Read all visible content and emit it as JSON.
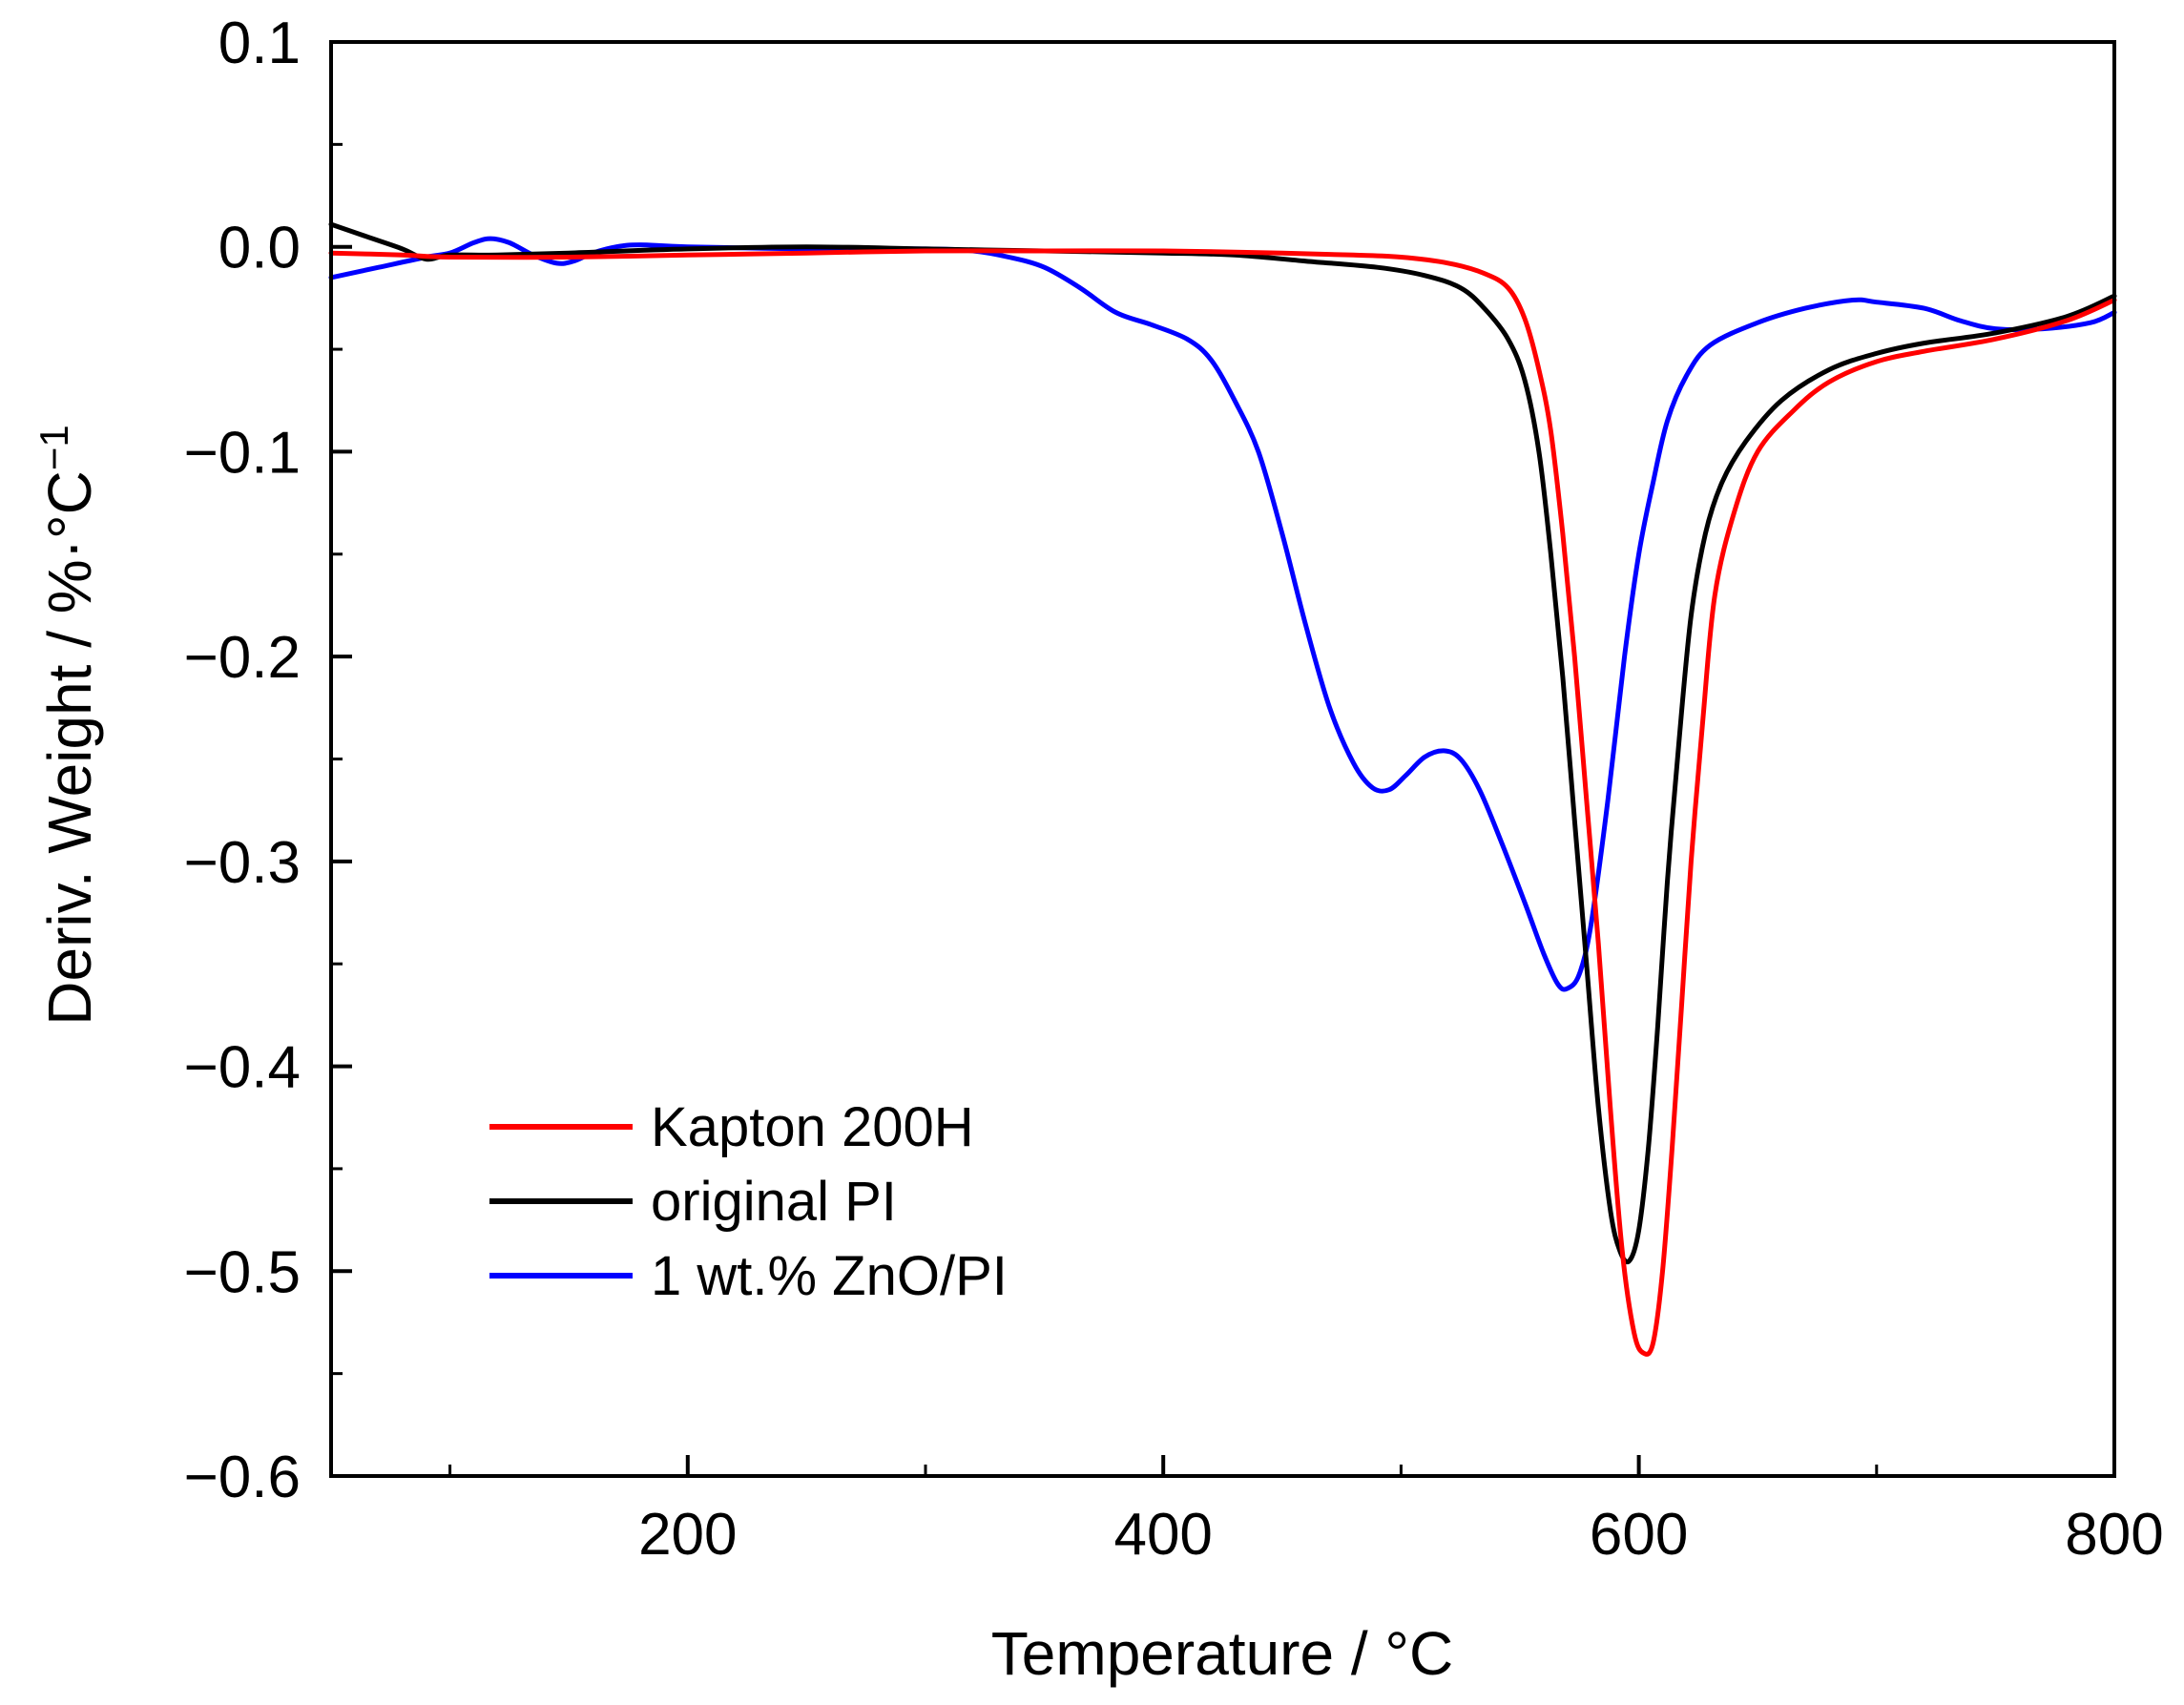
{
  "chart_data": {
    "type": "line",
    "title": "",
    "xlabel": "Temperature / °C",
    "ylabel": "Deriv. Weight / %·°C",
    "ylabel_sup": "−1",
    "xlim": [
      50,
      800
    ],
    "ylim": [
      -0.6,
      0.1
    ],
    "x_ticks": [
      {
        "value": 200,
        "label": "200"
      },
      {
        "value": 400,
        "label": "400"
      },
      {
        "value": 600,
        "label": "600"
      },
      {
        "value": 800,
        "label": "800"
      }
    ],
    "x_minor_ticks": [
      100,
      300,
      500,
      700
    ],
    "y_ticks": [
      {
        "value": 0.1,
        "label": "0.1"
      },
      {
        "value": 0.0,
        "label": "0.0"
      },
      {
        "value": -0.1,
        "label": "−0.1"
      },
      {
        "value": -0.2,
        "label": "−0.2"
      },
      {
        "value": -0.3,
        "label": "−0.3"
      },
      {
        "value": -0.4,
        "label": "−0.4"
      },
      {
        "value": -0.5,
        "label": "−0.5"
      },
      {
        "value": -0.6,
        "label": "−0.6"
      }
    ],
    "y_minor_ticks": [
      0.05,
      -0.05,
      -0.15,
      -0.25,
      -0.35,
      -0.45,
      -0.55
    ],
    "grid": false,
    "legend_position": "bottom-left",
    "series": [
      {
        "name": "Kapton 200H",
        "color": "#ff0000",
        "points": [
          [
            50,
            -0.003
          ],
          [
            80,
            -0.004
          ],
          [
            100,
            -0.005
          ],
          [
            150,
            -0.005
          ],
          [
            200,
            -0.004
          ],
          [
            250,
            -0.003
          ],
          [
            300,
            -0.002
          ],
          [
            350,
            -0.002
          ],
          [
            400,
            -0.002
          ],
          [
            450,
            -0.003
          ],
          [
            480,
            -0.004
          ],
          [
            500,
            -0.005
          ],
          [
            520,
            -0.008
          ],
          [
            535,
            -0.013
          ],
          [
            545,
            -0.02
          ],
          [
            552,
            -0.035
          ],
          [
            558,
            -0.06
          ],
          [
            563,
            -0.09
          ],
          [
            568,
            -0.14
          ],
          [
            573,
            -0.2
          ],
          [
            578,
            -0.27
          ],
          [
            583,
            -0.34
          ],
          [
            588,
            -0.42
          ],
          [
            593,
            -0.49
          ],
          [
            598,
            -0.53
          ],
          [
            602,
            -0.54
          ],
          [
            606,
            -0.535
          ],
          [
            610,
            -0.5
          ],
          [
            614,
            -0.44
          ],
          [
            618,
            -0.37
          ],
          [
            622,
            -0.3
          ],
          [
            627,
            -0.23
          ],
          [
            632,
            -0.17
          ],
          [
            640,
            -0.13
          ],
          [
            650,
            -0.1
          ],
          [
            665,
            -0.08
          ],
          [
            680,
            -0.066
          ],
          [
            700,
            -0.056
          ],
          [
            720,
            -0.051
          ],
          [
            750,
            -0.045
          ],
          [
            780,
            -0.036
          ],
          [
            800,
            -0.026
          ]
        ]
      },
      {
        "name": "original PI",
        "color": "#000000",
        "points": [
          [
            50,
            0.011
          ],
          [
            65,
            0.005
          ],
          [
            80,
            -0.001
          ],
          [
            90,
            -0.006
          ],
          [
            100,
            -0.004
          ],
          [
            120,
            -0.004
          ],
          [
            150,
            -0.003
          ],
          [
            200,
            -0.001
          ],
          [
            250,
            0.0
          ],
          [
            300,
            -0.001
          ],
          [
            350,
            -0.002
          ],
          [
            400,
            -0.003
          ],
          [
            430,
            -0.004
          ],
          [
            460,
            -0.007
          ],
          [
            490,
            -0.01
          ],
          [
            510,
            -0.014
          ],
          [
            525,
            -0.02
          ],
          [
            535,
            -0.03
          ],
          [
            545,
            -0.045
          ],
          [
            552,
            -0.065
          ],
          [
            558,
            -0.1
          ],
          [
            563,
            -0.15
          ],
          [
            568,
            -0.21
          ],
          [
            573,
            -0.28
          ],
          [
            578,
            -0.35
          ],
          [
            583,
            -0.42
          ],
          [
            588,
            -0.47
          ],
          [
            592,
            -0.49
          ],
          [
            596,
            -0.495
          ],
          [
            600,
            -0.48
          ],
          [
            604,
            -0.44
          ],
          [
            608,
            -0.38
          ],
          [
            612,
            -0.31
          ],
          [
            617,
            -0.24
          ],
          [
            622,
            -0.18
          ],
          [
            628,
            -0.14
          ],
          [
            635,
            -0.115
          ],
          [
            645,
            -0.095
          ],
          [
            660,
            -0.075
          ],
          [
            680,
            -0.06
          ],
          [
            700,
            -0.052
          ],
          [
            720,
            -0.047
          ],
          [
            750,
            -0.042
          ],
          [
            780,
            -0.034
          ],
          [
            800,
            -0.024
          ]
        ]
      },
      {
        "name": "1 wt.% ZnO/PI",
        "color": "#0000ff",
        "points": [
          [
            50,
            -0.015
          ],
          [
            70,
            -0.01
          ],
          [
            90,
            -0.005
          ],
          [
            100,
            -0.003
          ],
          [
            110,
            0.002
          ],
          [
            117,
            0.004
          ],
          [
            125,
            0.002
          ],
          [
            135,
            -0.004
          ],
          [
            145,
            -0.008
          ],
          [
            152,
            -0.007
          ],
          [
            160,
            -0.003
          ],
          [
            170,
            0.0
          ],
          [
            180,
            0.001
          ],
          [
            200,
            0.0
          ],
          [
            250,
            -0.001
          ],
          [
            300,
            -0.001
          ],
          [
            320,
            -0.002
          ],
          [
            335,
            -0.005
          ],
          [
            350,
            -0.01
          ],
          [
            365,
            -0.02
          ],
          [
            380,
            -0.032
          ],
          [
            395,
            -0.038
          ],
          [
            410,
            -0.045
          ],
          [
            420,
            -0.055
          ],
          [
            430,
            -0.075
          ],
          [
            440,
            -0.1
          ],
          [
            450,
            -0.14
          ],
          [
            460,
            -0.185
          ],
          [
            470,
            -0.225
          ],
          [
            480,
            -0.252
          ],
          [
            488,
            -0.264
          ],
          [
            495,
            -0.265
          ],
          [
            502,
            -0.258
          ],
          [
            510,
            -0.249
          ],
          [
            518,
            -0.246
          ],
          [
            525,
            -0.25
          ],
          [
            533,
            -0.265
          ],
          [
            542,
            -0.29
          ],
          [
            552,
            -0.32
          ],
          [
            560,
            -0.345
          ],
          [
            566,
            -0.36
          ],
          [
            570,
            -0.362
          ],
          [
            575,
            -0.355
          ],
          [
            580,
            -0.33
          ],
          [
            587,
            -0.27
          ],
          [
            594,
            -0.2
          ],
          [
            600,
            -0.15
          ],
          [
            606,
            -0.115
          ],
          [
            612,
            -0.085
          ],
          [
            620,
            -0.063
          ],
          [
            630,
            -0.048
          ],
          [
            650,
            -0.037
          ],
          [
            670,
            -0.03
          ],
          [
            690,
            -0.026
          ],
          [
            700,
            -0.027
          ],
          [
            720,
            -0.03
          ],
          [
            735,
            -0.036
          ],
          [
            750,
            -0.04
          ],
          [
            770,
            -0.04
          ],
          [
            790,
            -0.037
          ],
          [
            800,
            -0.032
          ]
        ]
      }
    ]
  }
}
